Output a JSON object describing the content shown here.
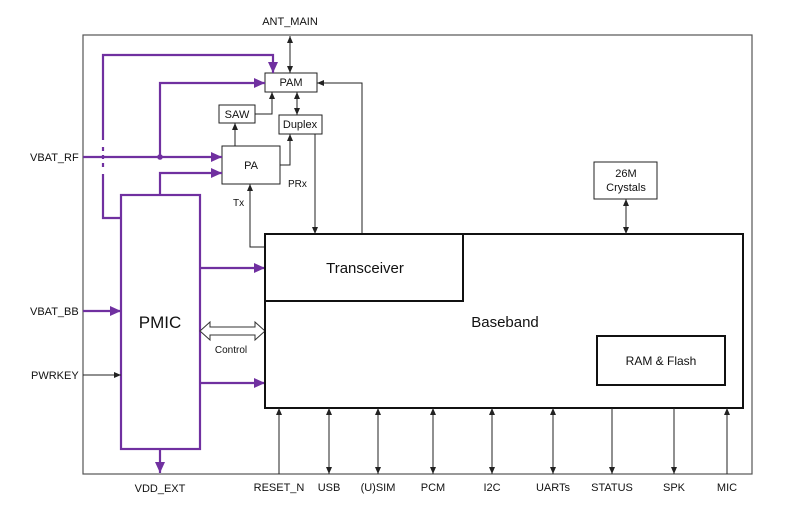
{
  "colors": {
    "power": "#7030a0",
    "signal": "#222222"
  },
  "blocks": {
    "pam": "PAM",
    "saw": "SAW",
    "duplex": "Duplex",
    "pa": "PA",
    "pmic": "PMIC",
    "transceiver": "Transceiver",
    "baseband": "Baseband",
    "ram_flash": "RAM & Flash",
    "crystal_line1": "26M",
    "crystal_line2": "Crystals"
  },
  "labels": {
    "ant_main": "ANT_MAIN",
    "vbat_rf": "VBAT_RF",
    "vbat_bb": "VBAT_BB",
    "pwrkey": "PWRKEY",
    "vdd_ext": "VDD_EXT",
    "tx": "Tx",
    "prx": "PRx",
    "control": "Control"
  },
  "bottom_signals": [
    {
      "label": "RESET_N",
      "direction": "in"
    },
    {
      "label": "USB",
      "direction": "bidirectional"
    },
    {
      "label": "(U)SIM",
      "direction": "bidirectional"
    },
    {
      "label": "PCM",
      "direction": "bidirectional"
    },
    {
      "label": "I2C",
      "direction": "bidirectional"
    },
    {
      "label": "UARTs",
      "direction": "bidirectional"
    },
    {
      "label": "STATUS",
      "direction": "out"
    },
    {
      "label": "SPK",
      "direction": "out"
    },
    {
      "label": "MIC",
      "direction": "in"
    }
  ]
}
